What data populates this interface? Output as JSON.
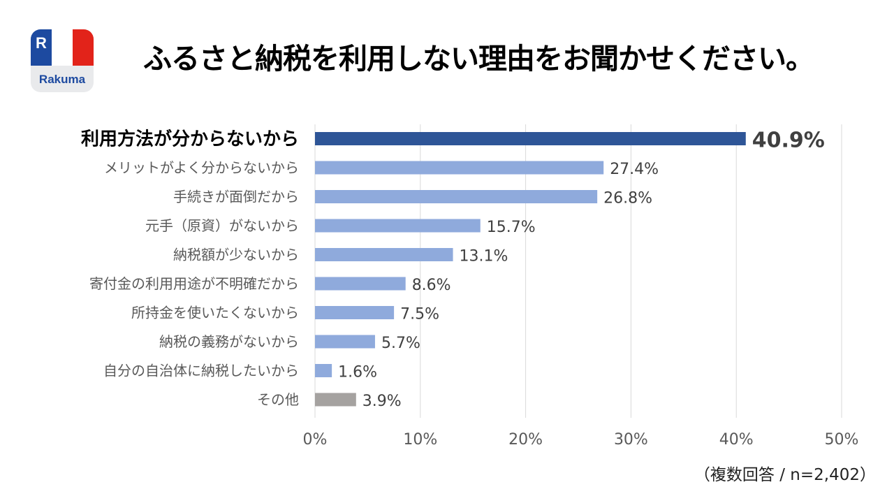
{
  "brand": {
    "logo_letter": "R",
    "name": "Rakuma",
    "colors": {
      "blue": "#1d4aa0",
      "red": "#e2231a",
      "tile": "#e9eaec"
    }
  },
  "title": "ふるさと納税を利用しない理由をお聞かせください。",
  "footnote": "（複数回答 / n=2,402）",
  "colors": {
    "highlight": "#2e5597",
    "bar": "#8faadc",
    "other": "#a5a2a0",
    "grid": "#d9d9d9"
  },
  "chart_data": {
    "type": "bar",
    "orientation": "horizontal",
    "title": "ふるさと納税を利用しない理由をお聞かせください。",
    "categories": [
      "利用方法が分からないから",
      "メリットがよく分からないから",
      "手続きが面倒だから",
      "元手（原資）がないから",
      "納税額が少ないから",
      "寄付金の利用用途が不明確だから",
      "所持金を使いたくないから",
      "納税の義務がないから",
      "自分の自治体に納税したいから",
      "その他"
    ],
    "values": [
      40.9,
      27.4,
      26.8,
      15.7,
      13.1,
      8.6,
      7.5,
      5.7,
      1.6,
      3.9
    ],
    "value_labels": [
      "40.9%",
      "27.4%",
      "26.8%",
      "15.7%",
      "13.1%",
      "8.6%",
      "7.5%",
      "5.7%",
      "1.6%",
      "3.9%"
    ],
    "highlight_index": 0,
    "other_index": 9,
    "xlim": [
      0,
      50
    ],
    "xticks": [
      0,
      10,
      20,
      30,
      40,
      50
    ],
    "xtick_labels": [
      "0%",
      "10%",
      "20%",
      "30%",
      "40%",
      "50%"
    ],
    "grid": true,
    "xlabel": "",
    "ylabel": ""
  }
}
